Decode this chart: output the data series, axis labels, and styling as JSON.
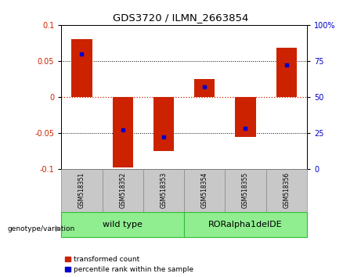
{
  "title": "GDS3720 / ILMN_2663854",
  "samples": [
    "GSM518351",
    "GSM518352",
    "GSM518353",
    "GSM518354",
    "GSM518355",
    "GSM518356"
  ],
  "transformed_counts": [
    0.08,
    -0.098,
    -0.075,
    0.025,
    -0.055,
    0.068
  ],
  "percentile_ranks_pct": [
    80,
    27,
    22,
    57,
    28,
    72
  ],
  "ylim_left": [
    -0.1,
    0.1
  ],
  "ylim_right": [
    0,
    100
  ],
  "yticks_left": [
    -0.1,
    -0.05,
    0,
    0.05,
    0.1
  ],
  "yticks_right": [
    0,
    25,
    50,
    75,
    100
  ],
  "group1_label": "wild type",
  "group2_label": "RORalpha1delDE",
  "group_color": "#90EE90",
  "group_edge_color": "#33BB33",
  "bar_color": "#CC2200",
  "dot_color": "#0000CC",
  "zero_line_color": "#CC2200",
  "bar_width": 0.5,
  "label_transformed": "transformed count",
  "label_percentile": "percentile rank within the sample",
  "sample_box_color": "#C8C8C8",
  "sample_box_edge": "#888888"
}
